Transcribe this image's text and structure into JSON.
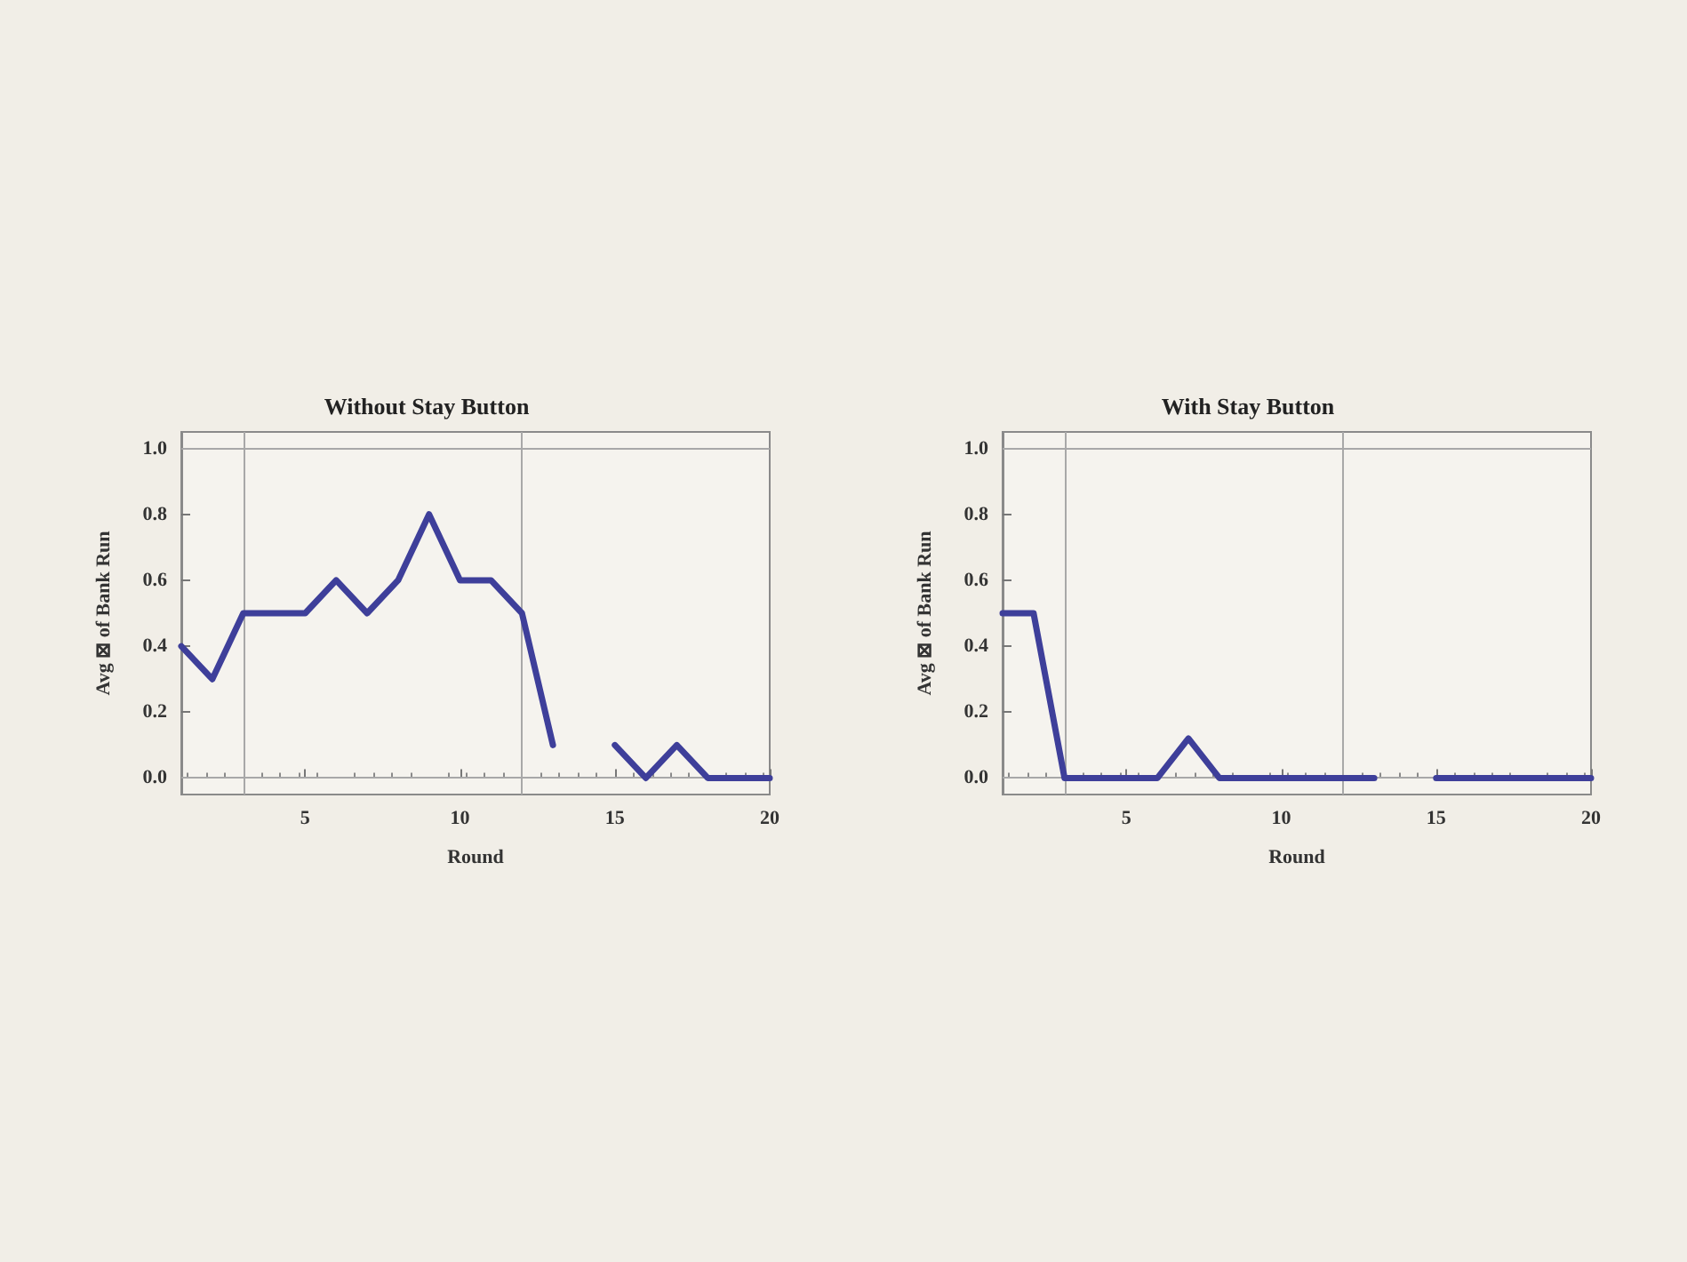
{
  "chart_data": [
    {
      "type": "line",
      "title": "Without Stay Button",
      "xlabel": "Round",
      "ylabel": "Avg ⊠ of Bank Run",
      "x": [
        1,
        2,
        3,
        4,
        5,
        6,
        7,
        8,
        9,
        10,
        11,
        12,
        13,
        14,
        15,
        16,
        17,
        18,
        19,
        20
      ],
      "series": [
        {
          "color": "#3e3f9a",
          "values": [
            0.4,
            0.3,
            0.5,
            0.5,
            0.5,
            0.6,
            0.5,
            0.6,
            0.8,
            0.6,
            0.6,
            0.5,
            0.1,
            null,
            0.1,
            0,
            0.1,
            0,
            0,
            0
          ]
        }
      ],
      "xlim": [
        1,
        20
      ],
      "xticks": [
        5,
        10,
        15,
        20
      ],
      "ylim": [
        -0.05,
        1.05
      ],
      "yticks": [
        {
          "value": 0,
          "label": "0.0"
        },
        {
          "value": 0.2,
          "label": "0.2"
        },
        {
          "value": 0.4,
          "label": "0.4"
        },
        {
          "value": 0.6,
          "label": "0.6"
        },
        {
          "value": 0.8,
          "label": "0.8"
        },
        {
          "value": 1,
          "label": "1.0"
        }
      ],
      "ref_lines": [
        {
          "axis": "x",
          "value": 3
        },
        {
          "axis": "x",
          "value": 12
        },
        {
          "axis": "y",
          "value": 0
        },
        {
          "axis": "y",
          "value": 1
        }
      ],
      "grid": false,
      "marker": "none",
      "line_style": "solid"
    },
    {
      "type": "line",
      "title": "With Stay Button",
      "xlabel": "Round",
      "ylabel": "Avg ⊠ of Bank Run",
      "x": [
        1,
        2,
        3,
        4,
        5,
        6,
        7,
        8,
        9,
        10,
        11,
        12,
        13,
        14,
        15,
        16,
        17,
        18,
        19,
        20
      ],
      "series": [
        {
          "color": "#3e3f9a",
          "values": [
            0.5,
            0.5,
            0,
            0,
            0,
            0,
            0.12,
            0,
            0,
            0,
            0,
            0,
            0,
            null,
            0,
            0,
            0,
            0,
            0,
            0
          ]
        }
      ],
      "xlim": [
        1,
        20
      ],
      "xticks": [
        5,
        10,
        15,
        20
      ],
      "ylim": [
        -0.05,
        1.05
      ],
      "yticks": [
        {
          "value": 0,
          "label": "0.0"
        },
        {
          "value": 0.2,
          "label": "0.2"
        },
        {
          "value": 0.4,
          "label": "0.4"
        },
        {
          "value": 0.6,
          "label": "0.6"
        },
        {
          "value": 0.8,
          "label": "0.8"
        },
        {
          "value": 1,
          "label": "1.0"
        }
      ],
      "ref_lines": [
        {
          "axis": "x",
          "value": 3
        },
        {
          "axis": "x",
          "value": 12
        },
        {
          "axis": "y",
          "value": 0
        },
        {
          "axis": "y",
          "value": 1
        }
      ],
      "grid": false,
      "marker": "none",
      "line_style": "solid"
    }
  ]
}
